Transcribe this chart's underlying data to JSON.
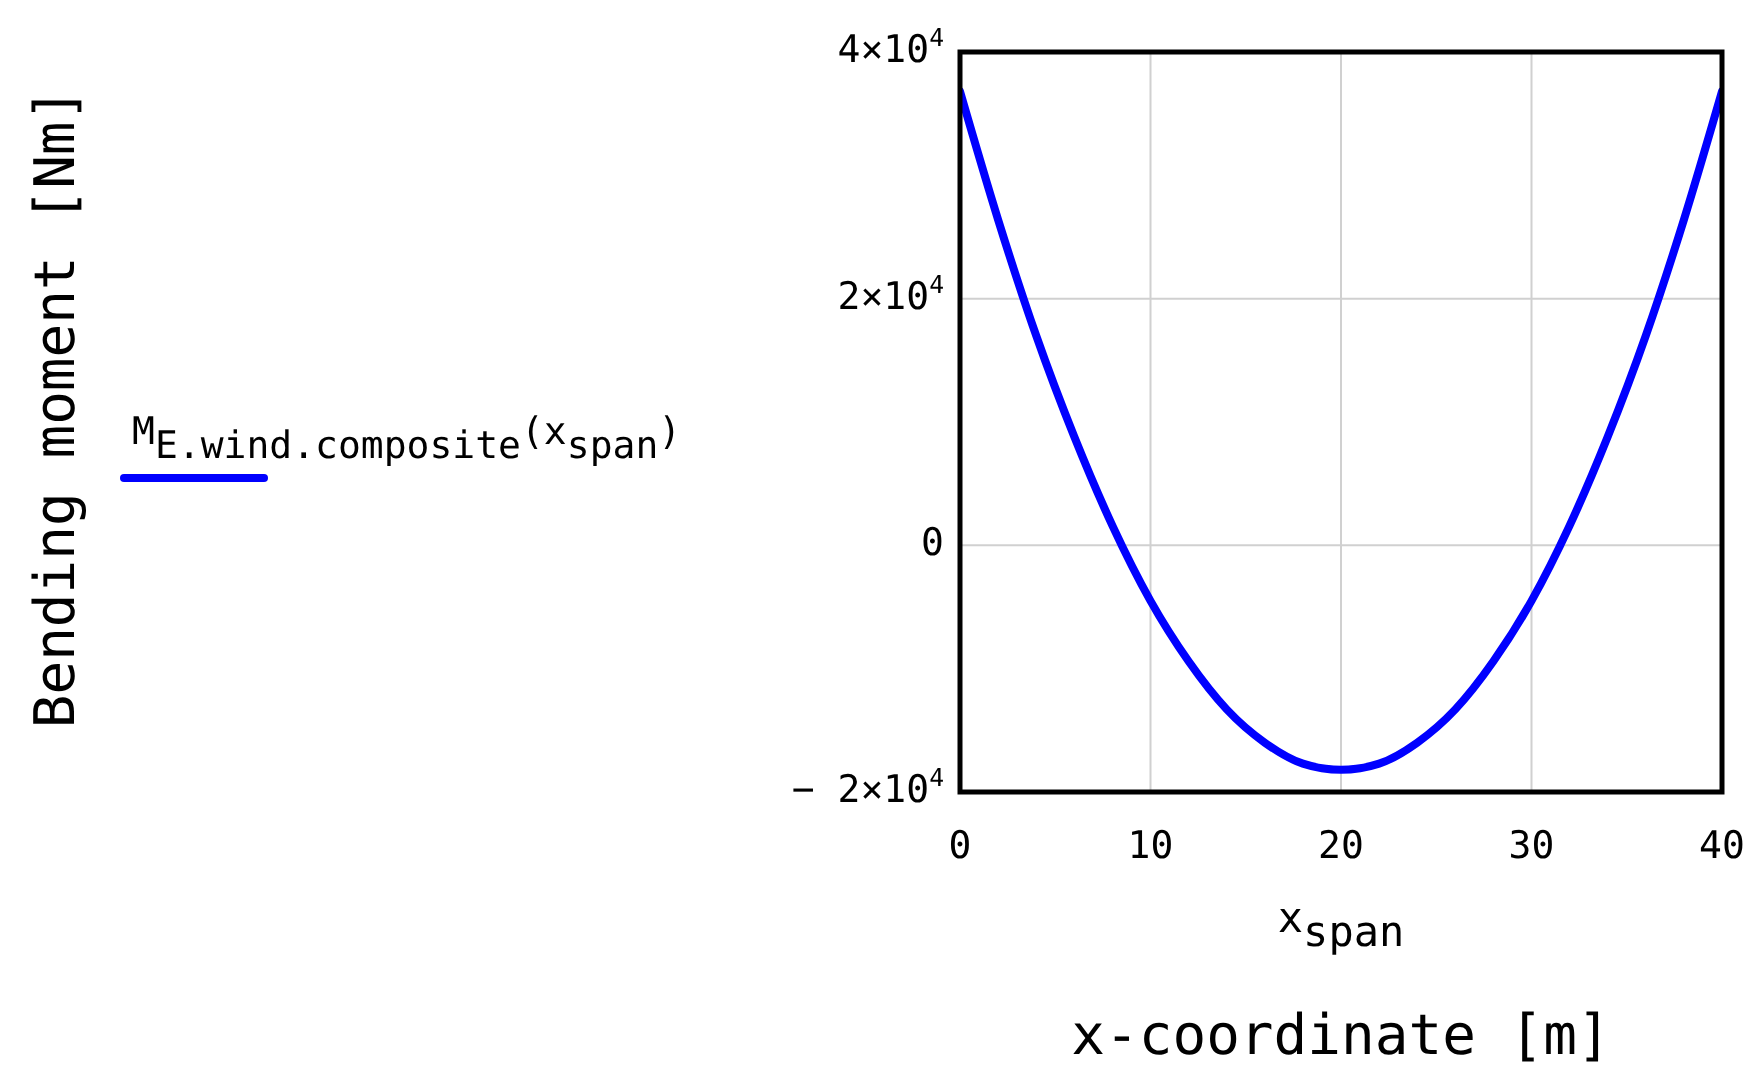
{
  "chart_data": {
    "type": "line",
    "xlabel": "x-coordinate [m]",
    "annotations": [
      "x$_{span}$",
      "Bending moment [Nm]"
    ],
    "x": [
      0,
      2,
      4,
      6,
      8,
      10,
      12,
      14,
      16,
      18,
      20,
      22,
      24,
      26,
      28,
      30,
      32,
      34,
      36,
      38,
      40
    ],
    "series": [
      {
        "name": "M$_{E.wind.composite}$(x$_{span}$)",
        "color": "#0000ff",
        "values": [
          36800,
          26400,
          17000,
          8800,
          1600,
          -4500,
          -9400,
          -13300,
          -16000,
          -17700,
          -18200,
          -17700,
          -16000,
          -13300,
          -9400,
          -4500,
          1600,
          8800,
          17000,
          26400,
          36800
        ]
      }
    ],
    "xlim": [
      0,
      40
    ],
    "xticks": [
      0,
      10,
      20,
      30,
      40
    ],
    "ylim": [
      -20000,
      40000
    ],
    "yticks": [
      {
        "value": -20000,
        "label": "− 2×10$^{4}$"
      },
      {
        "value": 0,
        "label": "0"
      },
      {
        "value": 20000,
        "label": "2×10$^{4}$"
      },
      {
        "value": 40000,
        "label": "4×10$^{4}$"
      }
    ],
    "grid": true,
    "legend": "left",
    "line_style": "solid"
  }
}
